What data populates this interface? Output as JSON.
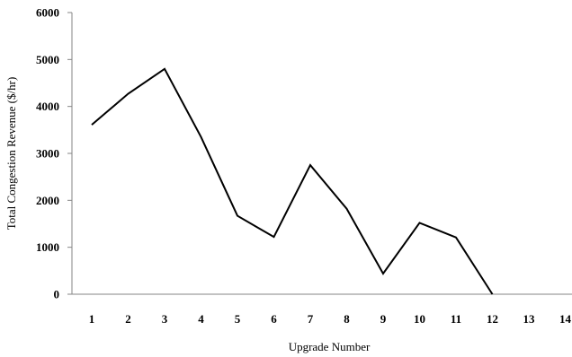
{
  "chart_data": {
    "type": "line",
    "x": [
      1,
      2,
      3,
      4,
      5,
      6,
      7,
      8,
      9,
      10,
      11,
      12
    ],
    "series": [
      {
        "values": [
          3610,
          4270,
          4800,
          3350,
          1670,
          1220,
          2750,
          1820,
          440,
          1520,
          1210,
          0
        ],
        "color": "#000000"
      }
    ],
    "x_ticks": [
      "1",
      "2",
      "3",
      "4",
      "5",
      "6",
      "7",
      "8",
      "9",
      "10",
      "11",
      "12",
      "13",
      "14"
    ],
    "y_ticks": [
      "0",
      "1000",
      "2000",
      "3000",
      "4000",
      "5000",
      "6000"
    ],
    "xlabel": "Upgrade Number",
    "ylabel": "Total Congestion Revenue ($/hr)",
    "xlim": [
      1,
      14
    ],
    "ylim": [
      0,
      6000
    ],
    "grid": false,
    "legend": "none"
  }
}
